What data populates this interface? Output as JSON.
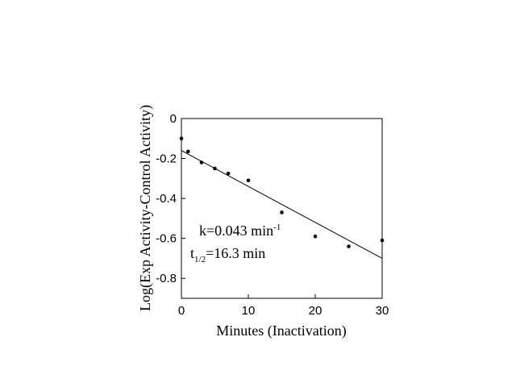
{
  "chart_data": {
    "type": "scatter",
    "xlabel": "Minutes (Inactivation)",
    "ylabel": "Log(Exp Activity-Control Activity)",
    "xlim": [
      0,
      30
    ],
    "ylim": [
      -0.9,
      0
    ],
    "x_ticks": [
      0,
      10,
      20,
      30
    ],
    "x_tick_labels": [
      "0",
      "10",
      "20",
      "30"
    ],
    "y_ticks": [
      0,
      -0.2,
      -0.4,
      -0.6,
      -0.8
    ],
    "y_tick_labels": [
      "0",
      "-0.2",
      "-0.4",
      "-0.6",
      "-0.8"
    ],
    "grid": false,
    "points": [
      {
        "x": 0,
        "y": -0.1
      },
      {
        "x": 1,
        "y": -0.165
      },
      {
        "x": 3,
        "y": -0.22
      },
      {
        "x": 5,
        "y": -0.25
      },
      {
        "x": 7,
        "y": -0.275
      },
      {
        "x": 10,
        "y": -0.31
      },
      {
        "x": 15,
        "y": -0.47
      },
      {
        "x": 20,
        "y": -0.59
      },
      {
        "x": 25,
        "y": -0.64
      },
      {
        "x": 30,
        "y": -0.61
      }
    ],
    "fit_line": {
      "x": [
        0,
        30
      ],
      "y": [
        -0.16,
        -0.7
      ]
    },
    "annotations": {
      "k_text": "k=0.043 min",
      "k_sup": "-1",
      "t_main": "t",
      "t_sub": "1/2",
      "t_value": "=16.3 min"
    }
  }
}
